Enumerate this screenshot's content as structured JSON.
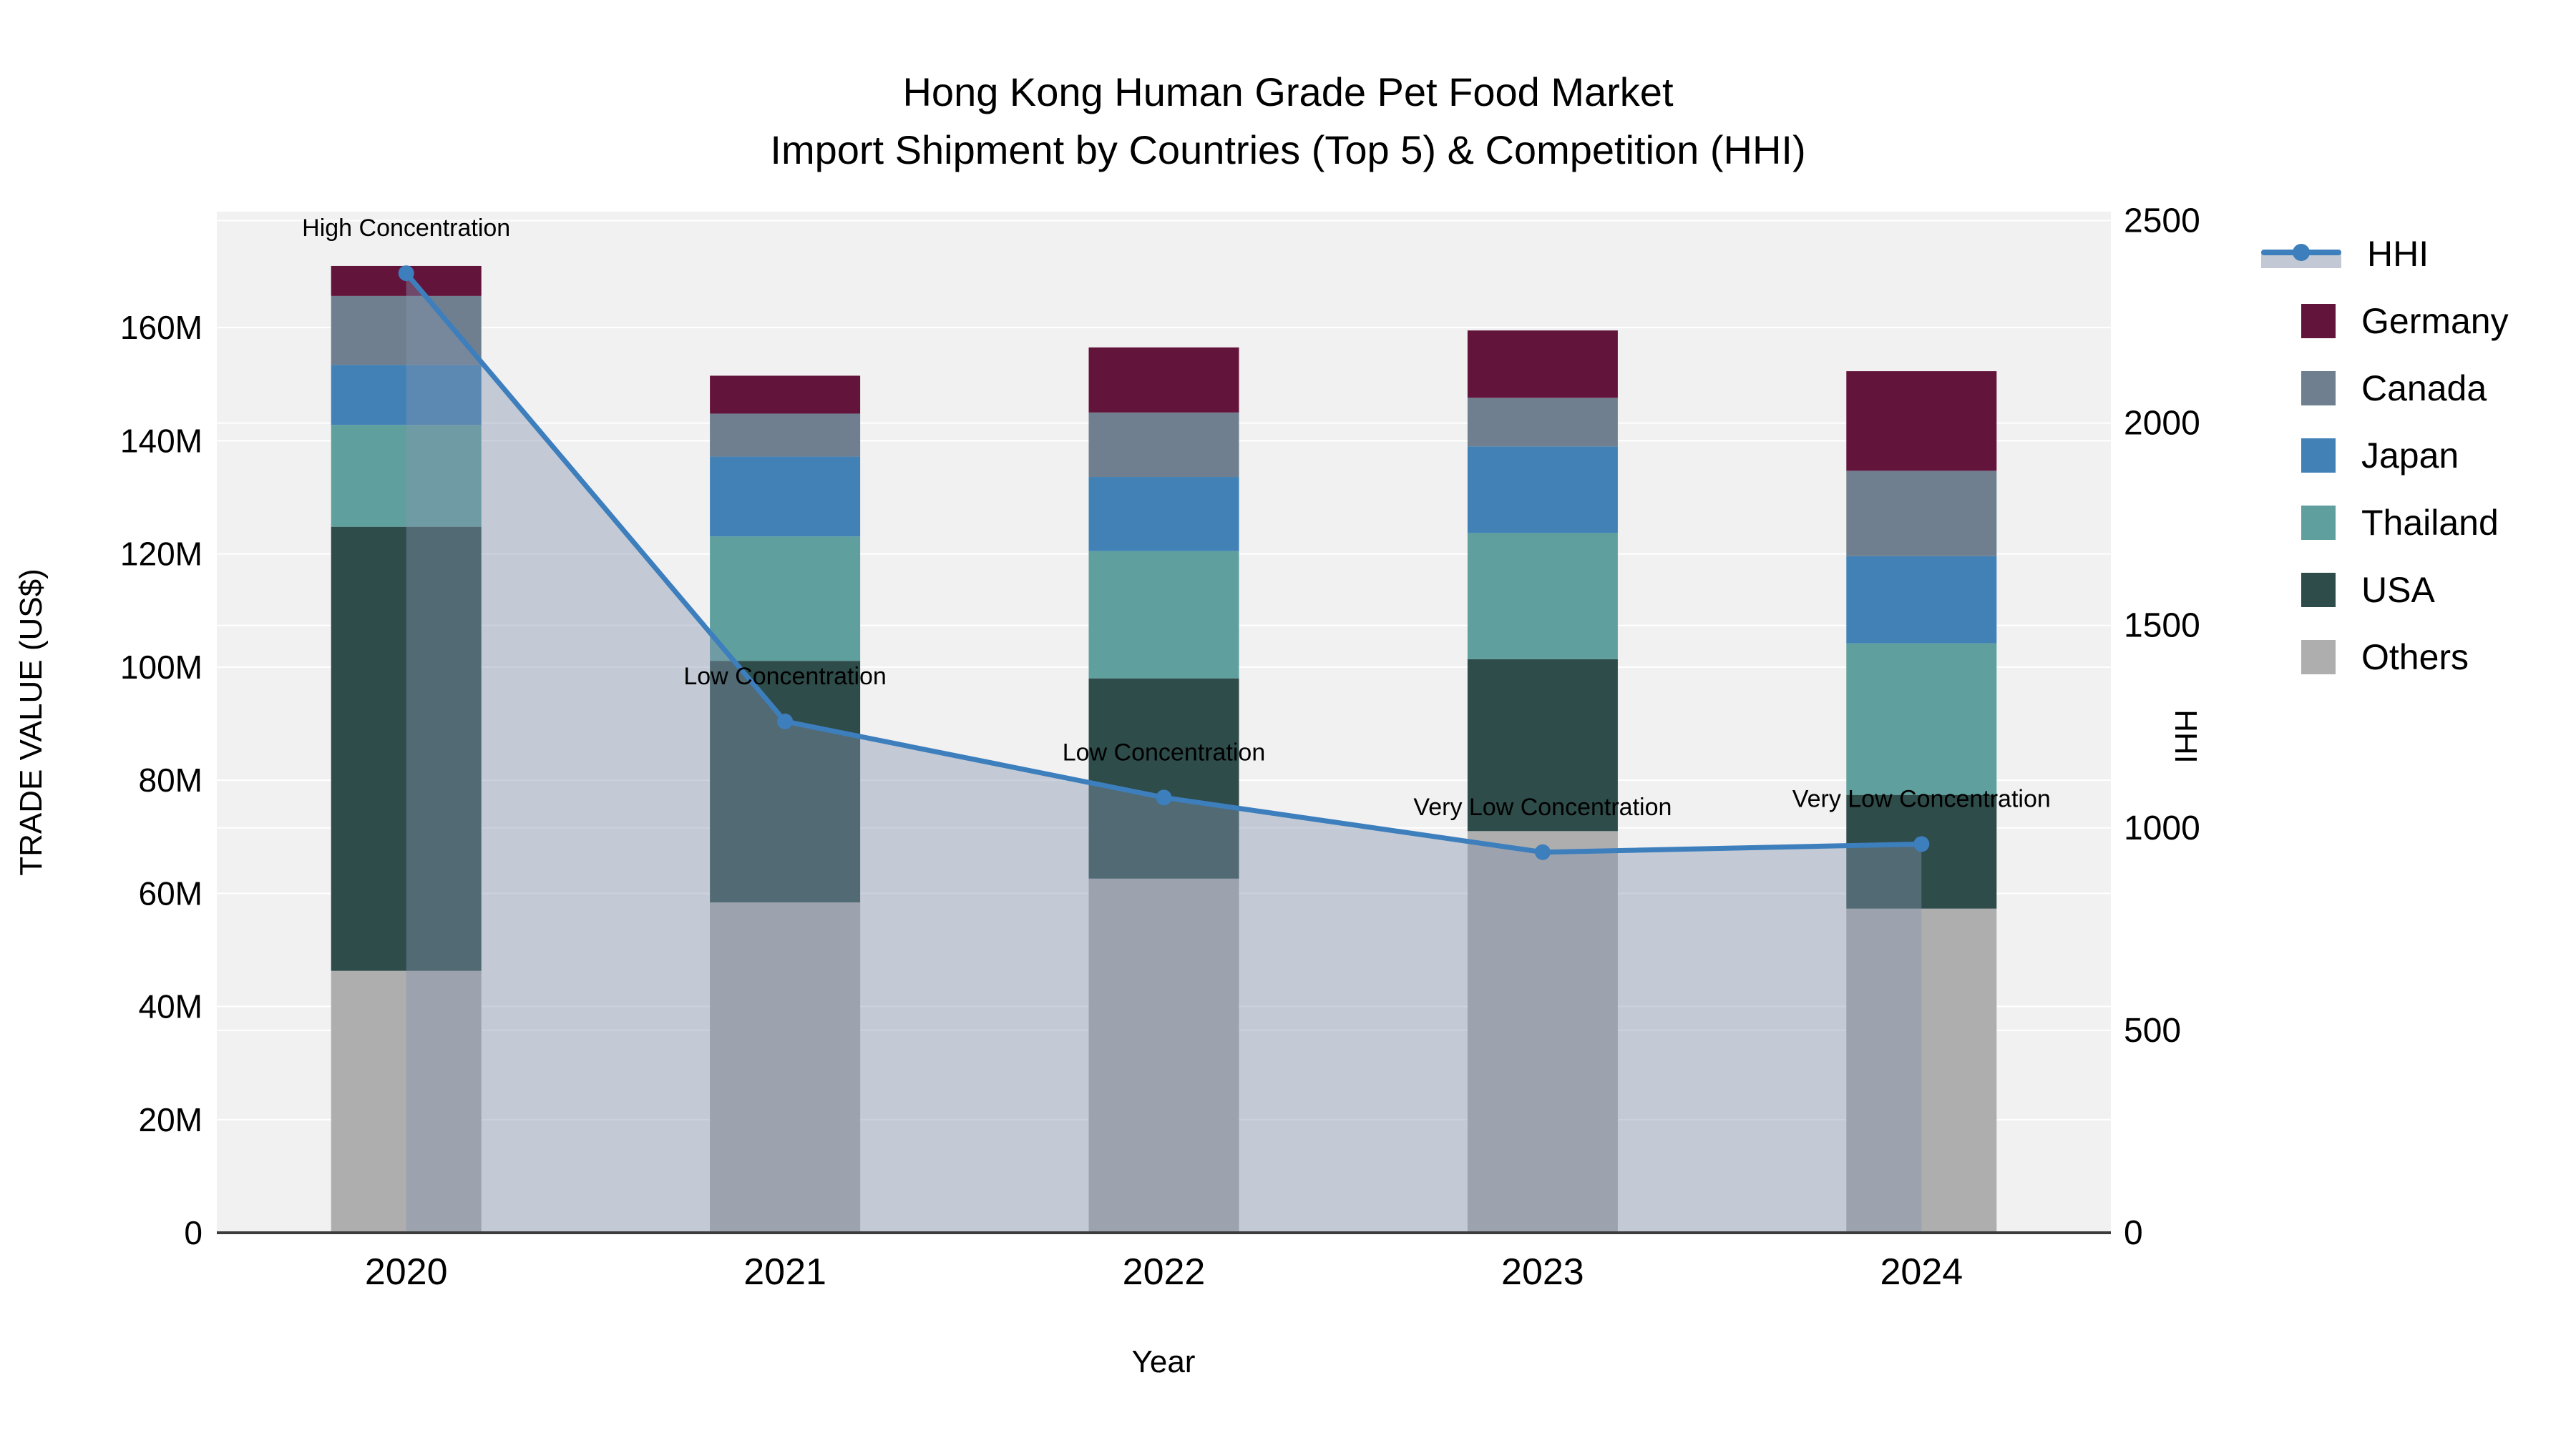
{
  "title": {
    "line1": "Hong Kong Human Grade Pet Food Market",
    "line2": "Import Shipment by Countries (Top 5) & Competition (HHI)"
  },
  "chart_data": {
    "type": "bar",
    "subtype": "stacked-bars-with-line-overlay",
    "categories": [
      "2020",
      "2021",
      "2022",
      "2023",
      "2024"
    ],
    "series": [
      {
        "name": "Others",
        "color": "#aeaeae",
        "values": [
          46.3,
          58.4,
          62.6,
          71.0,
          57.3
        ]
      },
      {
        "name": "USA",
        "color": "#2e4c4a",
        "values": [
          78.5,
          42.7,
          35.4,
          30.4,
          20.1
        ]
      },
      {
        "name": "Thailand",
        "color": "#5fa09e",
        "values": [
          18.0,
          22.0,
          22.5,
          22.3,
          26.8
        ]
      },
      {
        "name": "Japan",
        "color": "#4181b6",
        "values": [
          10.6,
          14.1,
          13.1,
          15.3,
          15.4
        ]
      },
      {
        "name": "Canada",
        "color": "#6f7f8f",
        "values": [
          12.2,
          7.6,
          11.4,
          8.6,
          15.1
        ]
      },
      {
        "name": "Germany",
        "color": "#63143a",
        "values": [
          5.3,
          6.7,
          11.5,
          11.9,
          17.6
        ]
      }
    ],
    "values_unit": "millions of US$",
    "line_series": {
      "name": "HHI",
      "color": "#3d7ebd",
      "fill_color": "rgba(131,147,173,0.42)",
      "values": [
        2370,
        1263,
        1075,
        940,
        960
      ],
      "axis": "right"
    },
    "annotations": [
      {
        "year": "2020",
        "text": "High Concentration"
      },
      {
        "year": "2021",
        "text": "Low Concentration"
      },
      {
        "year": "2022",
        "text": "Low Concentration"
      },
      {
        "year": "2023",
        "text": "Very Low Concentration"
      },
      {
        "year": "2024",
        "text": "Very Low Concentration"
      }
    ],
    "y_left": {
      "title": "TRADE VALUE (US$)",
      "ticks": [
        {
          "v": 0,
          "label": "0"
        },
        {
          "v": 20,
          "label": "20M"
        },
        {
          "v": 40,
          "label": "40M"
        },
        {
          "v": 60,
          "label": "60M"
        },
        {
          "v": 80,
          "label": "80M"
        },
        {
          "v": 100,
          "label": "100M"
        },
        {
          "v": 120,
          "label": "120M"
        },
        {
          "v": 140,
          "label": "140M"
        },
        {
          "v": 160,
          "label": "160M"
        }
      ],
      "max": 180.5
    },
    "y_right": {
      "title": "HHI",
      "ticks": [
        {
          "v": 0,
          "label": "0"
        },
        {
          "v": 500,
          "label": "500"
        },
        {
          "v": 1000,
          "label": "1000"
        },
        {
          "v": 1500,
          "label": "1500"
        },
        {
          "v": 2000,
          "label": "2000"
        },
        {
          "v": 2500,
          "label": "2500"
        }
      ],
      "max": 2522
    },
    "x_axis": {
      "title": "Year"
    },
    "grid": true,
    "plot_bg": "#f1f1f2",
    "grid_color": "#ffffff",
    "baseline_color": "#3c3c3c",
    "legend_position": "right"
  },
  "legend": {
    "items": [
      {
        "label": "HHI",
        "type": "line",
        "color": "#3d7ebd"
      },
      {
        "label": "Germany",
        "type": "swatch",
        "color": "#63143a"
      },
      {
        "label": "Canada",
        "type": "swatch",
        "color": "#6f7f8f"
      },
      {
        "label": "Japan",
        "type": "swatch",
        "color": "#4181b6"
      },
      {
        "label": "Thailand",
        "type": "swatch",
        "color": "#5fa09e"
      },
      {
        "label": "USA",
        "type": "swatch",
        "color": "#2e4c4a"
      },
      {
        "label": "Others",
        "type": "swatch",
        "color": "#aeaeae"
      }
    ]
  }
}
